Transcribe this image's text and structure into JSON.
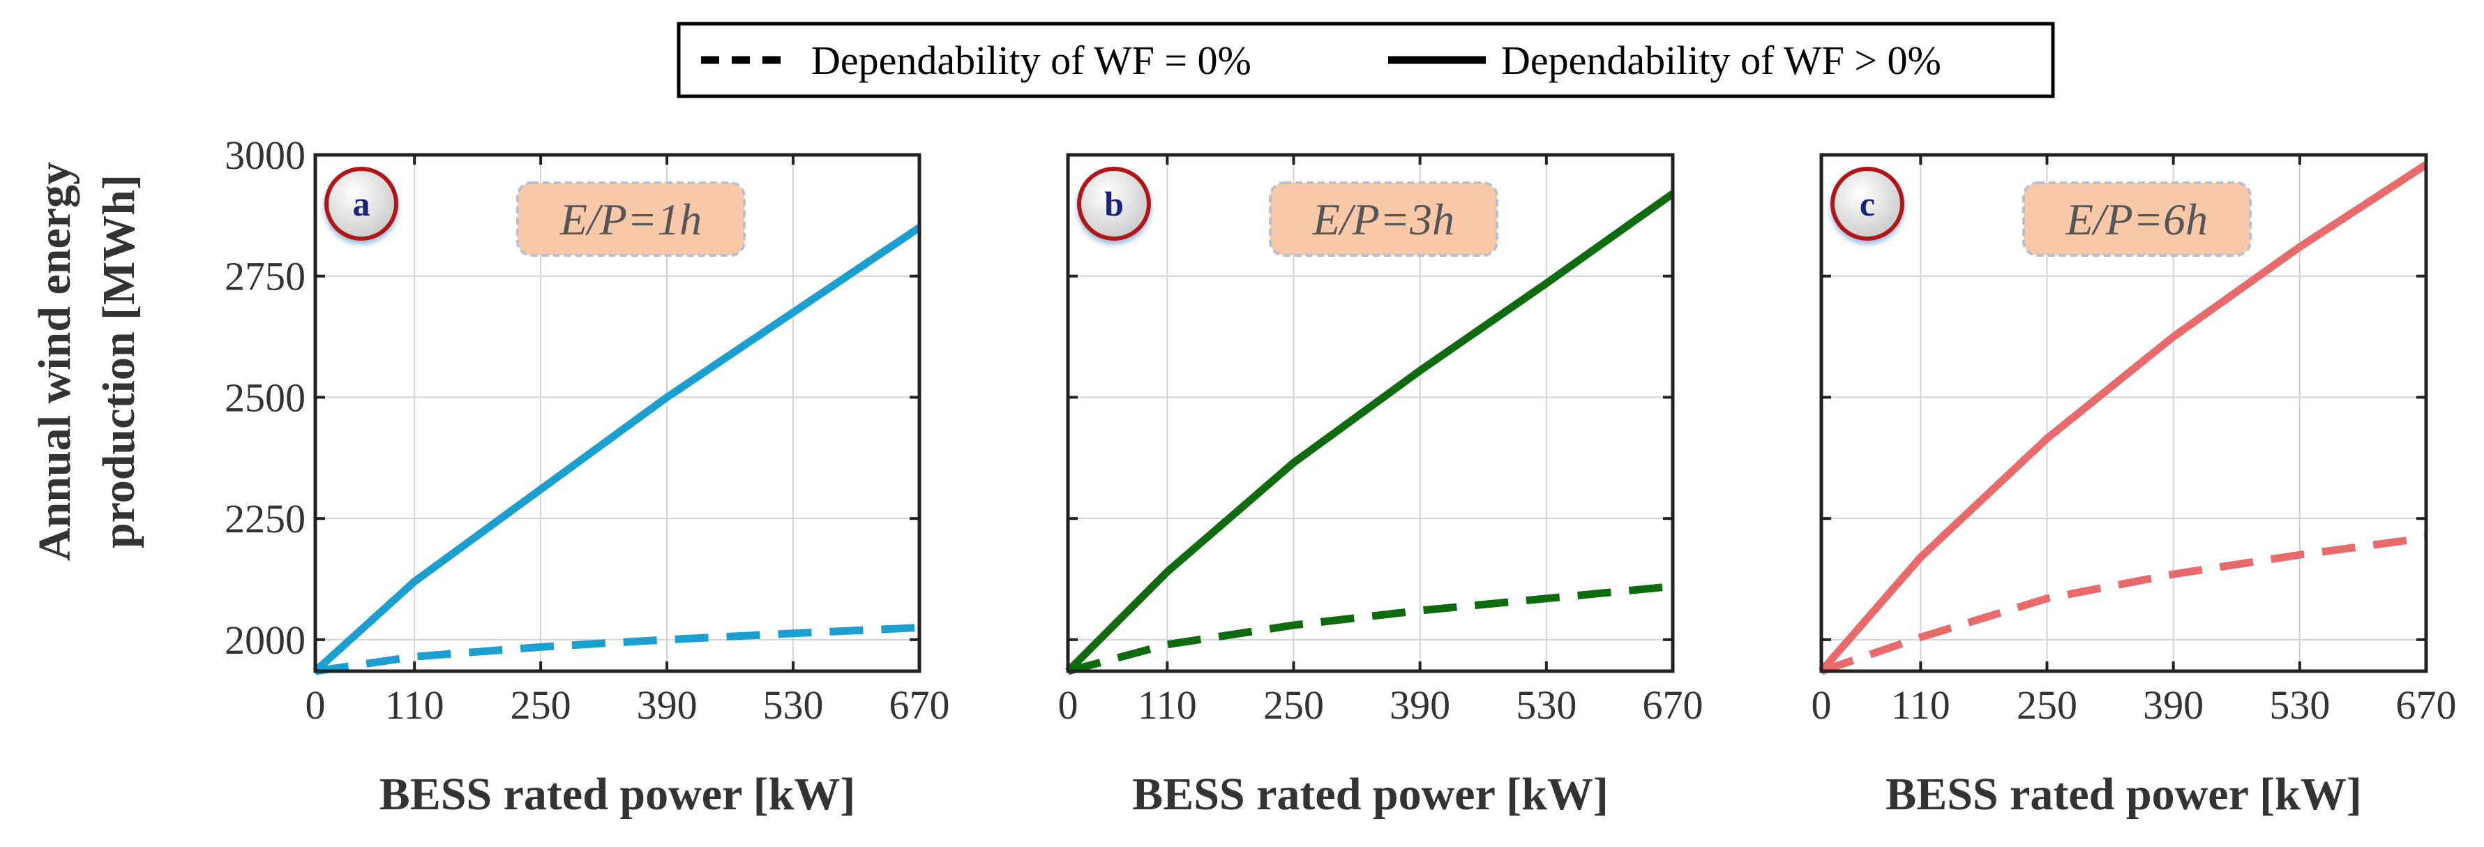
{
  "legend": {
    "items": [
      {
        "label": "Dependability of WF = 0%",
        "style": "dashed"
      },
      {
        "label": "Dependability of WF > 0%",
        "style": "solid"
      }
    ]
  },
  "shared_y_label": [
    "Annual wind energy",
    "production [MWh]"
  ],
  "chart_data": [
    {
      "type": "line",
      "panel_label": "a",
      "annotation": "E/P=1h",
      "color": "#1a9fd0",
      "xlabel": "BESS rated power [kW]",
      "ylabel": "Annual wind energy production [MWh]",
      "xlim": [
        0,
        670
      ],
      "ylim": [
        1935,
        3000
      ],
      "xticks": [
        0,
        110,
        250,
        390,
        530,
        670
      ],
      "yticks": [
        2000,
        2250,
        2500,
        2750,
        3000
      ],
      "grid": true,
      "series": [
        {
          "name": "Dependability of WF = 0%",
          "style": "dashed",
          "x": [
            0,
            110,
            250,
            390,
            530,
            670
          ],
          "y": [
            1935,
            1965,
            1985,
            2000,
            2013,
            2025
          ]
        },
        {
          "name": "Dependability of WF > 0%",
          "style": "solid",
          "x": [
            0,
            110,
            250,
            390,
            530,
            670
          ],
          "y": [
            1935,
            2120,
            2310,
            2500,
            2675,
            2850
          ]
        }
      ]
    },
    {
      "type": "line",
      "panel_label": "b",
      "annotation": "E/P=3h",
      "color": "#0e6b0e",
      "xlabel": "BESS rated power [kW]",
      "ylabel": "Annual wind energy production [MWh]",
      "xlim": [
        0,
        670
      ],
      "ylim": [
        1935,
        3000
      ],
      "xticks": [
        0,
        110,
        250,
        390,
        530,
        670
      ],
      "yticks": [
        2000,
        2250,
        2500,
        2750,
        3000
      ],
      "grid": true,
      "series": [
        {
          "name": "Dependability of WF = 0%",
          "style": "dashed",
          "x": [
            0,
            110,
            250,
            390,
            530,
            670
          ],
          "y": [
            1935,
            1990,
            2030,
            2060,
            2085,
            2110
          ]
        },
        {
          "name": "Dependability of WF > 0%",
          "style": "solid",
          "x": [
            0,
            110,
            250,
            390,
            530,
            670
          ],
          "y": [
            1935,
            2140,
            2365,
            2555,
            2735,
            2920
          ]
        }
      ]
    },
    {
      "type": "line",
      "panel_label": "c",
      "annotation": "E/P=6h",
      "color": "#e86a6a",
      "xlabel": "BESS rated power [kW]",
      "ylabel": "Annual wind energy production [MWh]",
      "xlim": [
        0,
        670
      ],
      "ylim": [
        1935,
        3000
      ],
      "xticks": [
        0,
        110,
        250,
        390,
        530,
        670
      ],
      "yticks": [
        2000,
        2250,
        2500,
        2750,
        3000
      ],
      "grid": true,
      "series": [
        {
          "name": "Dependability of WF = 0%",
          "style": "dashed",
          "x": [
            0,
            110,
            250,
            390,
            530,
            670
          ],
          "y": [
            1935,
            2005,
            2085,
            2135,
            2175,
            2210
          ]
        },
        {
          "name": "Dependability of WF > 0%",
          "style": "solid",
          "x": [
            0,
            110,
            250,
            390,
            530,
            670
          ],
          "y": [
            1935,
            2170,
            2415,
            2625,
            2810,
            2980
          ]
        }
      ]
    }
  ]
}
